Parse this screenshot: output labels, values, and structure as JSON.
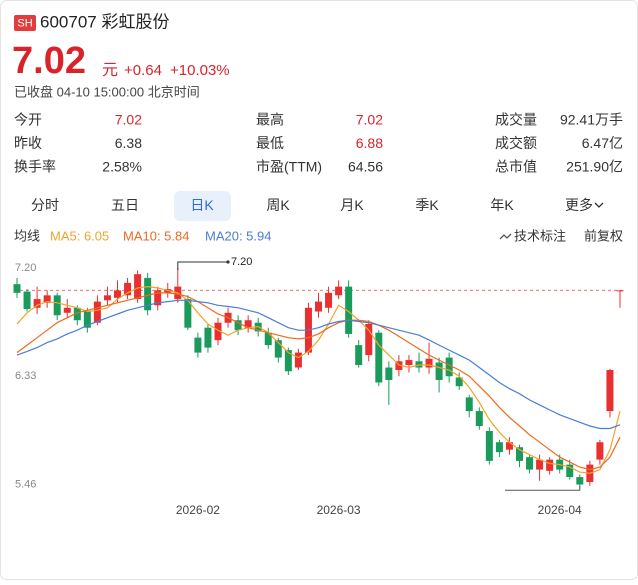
{
  "header": {
    "badge": "SH",
    "name": "600707 彩虹股份",
    "price": "7.02",
    "unit": "元",
    "change": "+0.64",
    "change_pct": "+10.03%",
    "status": "已收盘 04-10 15:00:00 北京时间"
  },
  "stats": [
    [
      [
        "今开",
        "7.02"
      ],
      [
        "最高",
        "7.02"
      ],
      [
        "成交量",
        "92.41万手"
      ]
    ],
    [
      [
        "昨收",
        "6.38"
      ],
      [
        "最低",
        "6.88"
      ],
      [
        "成交额",
        "6.47亿"
      ]
    ],
    [
      [
        "换手率",
        "2.58%"
      ],
      [
        "市盈(TTM)",
        "64.56"
      ],
      [
        "总市值",
        "251.90亿"
      ]
    ]
  ],
  "tabs": [
    "分时",
    "五日",
    "日K",
    "周K",
    "月K",
    "季K",
    "年K",
    "更多"
  ],
  "chart_data": {
    "type": "candlestick",
    "legend_title": "均线",
    "tools": [
      "技术标注",
      "前复权"
    ],
    "up_color": "#e93030",
    "down_color": "#1a9b5c",
    "categories": [
      null,
      null,
      null,
      null,
      null,
      null,
      null,
      null,
      null,
      null,
      null,
      null,
      null,
      null,
      null,
      null,
      null,
      null,
      "2026-02",
      null,
      null,
      null,
      null,
      null,
      null,
      null,
      null,
      null,
      null,
      null,
      null,
      null,
      "2026-03",
      null,
      null,
      null,
      null,
      null,
      null,
      null,
      null,
      null,
      null,
      null,
      null,
      null,
      null,
      null,
      null,
      null,
      null,
      null,
      null,
      null,
      "2026-04",
      null,
      null,
      null,
      null,
      null,
      null
    ],
    "open": [
      7.07,
      7.01,
      6.88,
      6.92,
      6.98,
      6.84,
      6.88,
      6.85,
      6.76,
      6.94,
      6.96,
      6.98,
      6.95,
      7.12,
      6.9,
      7.0,
      6.95,
      6.95,
      6.64,
      6.72,
      6.62,
      6.76,
      6.78,
      6.72,
      6.76,
      6.68,
      6.62,
      6.54,
      6.4,
      6.52,
      6.85,
      6.88,
      6.98,
      7.05,
      6.58,
      6.5,
      6.68,
      6.4,
      6.38,
      6.42,
      6.45,
      6.4,
      6.44,
      6.48,
      6.32,
      6.16,
      6.05,
      5.89,
      5.8,
      5.74,
      5.76,
      5.68,
      5.58,
      5.57,
      5.66,
      5.62,
      5.52,
      5.48,
      5.66,
      6.05,
      7.02
    ],
    "high": [
      7.12,
      7.03,
      7.05,
      7.02,
      7.0,
      6.95,
      6.9,
      6.88,
      6.98,
      7.05,
      7.1,
      7.12,
      7.18,
      7.16,
      7.05,
      7.08,
      7.2,
      6.98,
      6.68,
      6.75,
      6.8,
      6.88,
      6.82,
      6.82,
      6.8,
      6.72,
      6.64,
      6.56,
      6.55,
      6.92,
      7.0,
      7.05,
      7.1,
      7.1,
      6.62,
      6.78,
      6.7,
      6.45,
      6.5,
      6.5,
      6.52,
      6.6,
      6.48,
      6.52,
      6.36,
      6.18,
      6.08,
      5.92,
      5.82,
      5.84,
      5.78,
      5.7,
      5.7,
      5.68,
      5.7,
      5.66,
      5.54,
      5.65,
      5.82,
      6.39,
      7.02
    ],
    "low": [
      6.96,
      6.85,
      6.83,
      6.88,
      6.78,
      6.8,
      6.74,
      6.68,
      6.74,
      6.9,
      6.92,
      6.95,
      6.92,
      6.82,
      6.86,
      6.96,
      6.92,
      6.7,
      6.48,
      6.52,
      6.58,
      6.72,
      6.66,
      6.68,
      6.65,
      6.55,
      6.44,
      6.34,
      6.38,
      6.5,
      6.8,
      6.84,
      6.95,
      6.64,
      6.4,
      6.45,
      6.25,
      6.1,
      6.33,
      6.36,
      6.36,
      6.35,
      6.2,
      6.28,
      6.22,
      6.0,
      5.9,
      5.62,
      5.68,
      5.7,
      5.6,
      5.55,
      5.49,
      5.54,
      5.55,
      5.5,
      5.43,
      5.45,
      5.62,
      6.0,
      6.88
    ],
    "close": [
      7.0,
      6.87,
      6.95,
      6.98,
      6.82,
      6.88,
      6.78,
      6.72,
      6.93,
      6.98,
      7.02,
      7.08,
      7.15,
      6.86,
      7.02,
      7.03,
      7.05,
      6.72,
      6.52,
      6.56,
      6.76,
      6.84,
      6.7,
      6.78,
      6.69,
      6.58,
      6.48,
      6.37,
      6.52,
      6.88,
      6.93,
      7.0,
      7.05,
      6.67,
      6.42,
      6.75,
      6.28,
      6.3,
      6.45,
      6.46,
      6.4,
      6.47,
      6.3,
      6.33,
      6.25,
      6.05,
      5.93,
      5.65,
      5.72,
      5.8,
      5.65,
      5.58,
      5.66,
      5.66,
      5.58,
      5.52,
      5.46,
      5.62,
      5.8,
      6.38,
      7.02
    ],
    "series": [
      {
        "name": "MA5: 6.05",
        "color": "#f2a32b",
        "values": [
          6.75,
          6.84,
          6.9,
          6.93,
          6.92,
          6.9,
          6.88,
          6.85,
          6.86,
          6.88,
          6.95,
          7.0,
          7.04,
          7.05,
          7.04,
          7.02,
          7.0,
          6.94,
          6.84,
          6.75,
          6.7,
          6.66,
          6.7,
          6.72,
          6.73,
          6.68,
          6.6,
          6.52,
          6.48,
          6.53,
          6.62,
          6.75,
          6.9,
          6.85,
          6.78,
          6.7,
          6.58,
          6.5,
          6.42,
          6.4,
          6.42,
          6.42,
          6.4,
          6.38,
          6.33,
          6.24,
          6.12,
          5.98,
          5.88,
          5.8,
          5.74,
          5.7,
          5.66,
          5.63,
          5.62,
          5.6,
          5.56,
          5.55,
          5.58,
          5.74,
          6.05
        ]
      },
      {
        "name": "MA10: 5.84",
        "color": "#ec6a22",
        "values": [
          6.52,
          6.58,
          6.64,
          6.7,
          6.76,
          6.8,
          6.84,
          6.86,
          6.88,
          6.9,
          6.92,
          6.94,
          6.96,
          6.98,
          7.0,
          7.0,
          6.99,
          6.97,
          6.93,
          6.88,
          6.83,
          6.8,
          6.76,
          6.72,
          6.7,
          6.68,
          6.66,
          6.64,
          6.63,
          6.64,
          6.67,
          6.72,
          6.76,
          6.78,
          6.78,
          6.77,
          6.74,
          6.7,
          6.65,
          6.6,
          6.55,
          6.5,
          6.46,
          6.42,
          6.38,
          6.33,
          6.25,
          6.17,
          6.08,
          6.0,
          5.93,
          5.86,
          5.8,
          5.74,
          5.68,
          5.64,
          5.6,
          5.58,
          5.6,
          5.68,
          5.84
        ]
      },
      {
        "name": "MA20: 5.94",
        "color": "#4a7ed6",
        "values": [
          6.5,
          6.53,
          6.56,
          6.6,
          6.63,
          6.67,
          6.7,
          6.74,
          6.77,
          6.8,
          6.83,
          6.86,
          6.88,
          6.9,
          6.92,
          6.93,
          6.94,
          6.94,
          6.93,
          6.92,
          6.9,
          6.89,
          6.88,
          6.86,
          6.84,
          6.8,
          6.76,
          6.72,
          6.7,
          6.7,
          6.72,
          6.75,
          6.77,
          6.78,
          6.77,
          6.76,
          6.74,
          6.72,
          6.7,
          6.68,
          6.66,
          6.62,
          6.58,
          6.54,
          6.5,
          6.46,
          6.4,
          6.34,
          6.28,
          6.23,
          6.19,
          6.14,
          6.1,
          6.06,
          6.02,
          5.99,
          5.96,
          5.93,
          5.91,
          5.91,
          5.94
        ]
      }
    ],
    "ylim": [
      5.4,
      7.28
    ],
    "yticks": [
      {
        "value": 7.2,
        "label": "7.20"
      },
      {
        "value": 6.33,
        "label": "6.33"
      },
      {
        "value": 5.46,
        "label": "5.46"
      }
    ],
    "annotations": [
      {
        "text": "7.20"
      }
    ]
  }
}
